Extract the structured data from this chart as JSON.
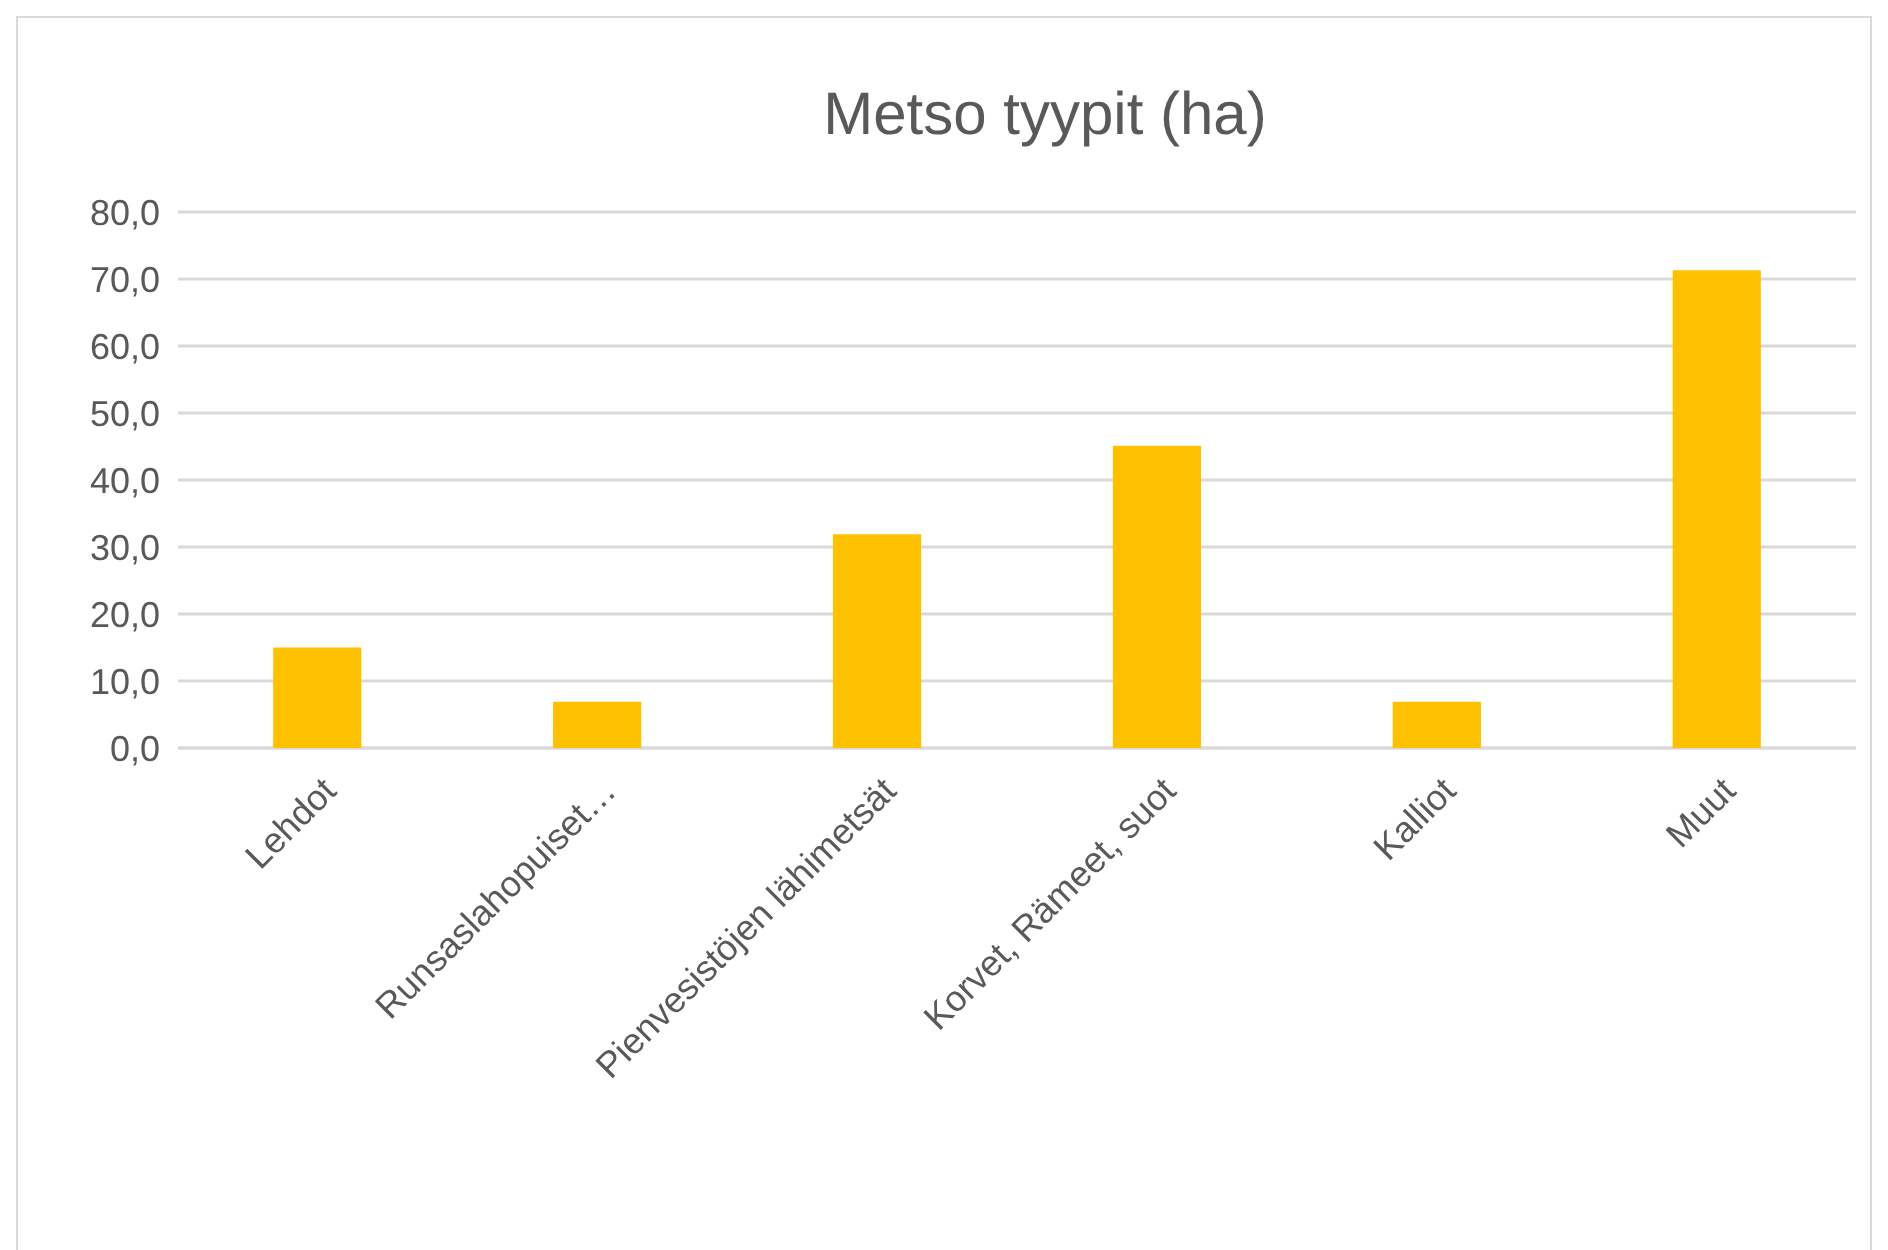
{
  "chart_data": {
    "type": "bar",
    "title": "Metso tyypit (ha)",
    "categories": [
      "Lehdot",
      "Runsaslahopuiset…",
      "Pienvesistöjen lähimetsät",
      "Korvet, Rämeet, suot",
      "Kalliot",
      "Muut"
    ],
    "values": [
      15.0,
      6.9,
      31.9,
      45.1,
      6.9,
      71.3
    ],
    "color": "#ffc000",
    "ylim": [
      0,
      80
    ],
    "yticks": [
      {
        "value": 0,
        "label": "0,0"
      },
      {
        "value": 10,
        "label": "10,0"
      },
      {
        "value": 20,
        "label": "20,0"
      },
      {
        "value": 30,
        "label": "30,0"
      },
      {
        "value": 40,
        "label": "40,0"
      },
      {
        "value": 50,
        "label": "50,0"
      },
      {
        "value": 60,
        "label": "60,0"
      },
      {
        "value": 70,
        "label": "70,0"
      },
      {
        "value": 80,
        "label": "80,0"
      }
    ],
    "grid": "y"
  }
}
